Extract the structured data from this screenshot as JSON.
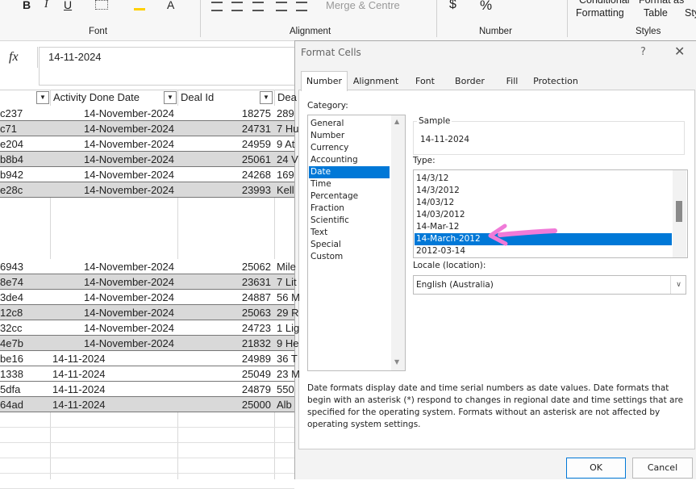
{
  "ribbon": {
    "bold": "B",
    "italic": "I",
    "underline": "U",
    "font_color": "A",
    "merge": "Merge & Centre",
    "currency": "$",
    "percent": "%",
    "conditional": [
      "Conditional",
      "Formatting"
    ],
    "format_table": [
      "Format as",
      "Table"
    ],
    "styles_cut": "Sty",
    "groups": [
      "Font",
      "Alignment",
      "Number",
      "Styles"
    ]
  },
  "formula_bar": {
    "fx": "fx",
    "value": "14-11-2024"
  },
  "sheet": {
    "headers": [
      "Activity Done Date",
      "Deal Id",
      "Dea"
    ],
    "rows": [
      [
        "c237",
        "14-November-2024",
        "18275",
        "289"
      ],
      [
        "c71",
        "14-November-2024",
        "24731",
        "7 Hu"
      ],
      [
        "e204",
        "14-November-2024",
        "24959",
        "9 At"
      ],
      [
        "b8b4",
        "14-November-2024",
        "25061",
        "24 V"
      ],
      [
        "b942",
        "14-November-2024",
        "24268",
        "169"
      ],
      [
        "e28c",
        "14-November-2024",
        "23993",
        "Kell"
      ],
      [
        "6943",
        "14-November-2024",
        "25062",
        "Mile"
      ],
      [
        "8e74",
        "14-November-2024",
        "23631",
        "7 Lit"
      ],
      [
        "3de4",
        "14-November-2024",
        "24887",
        "56 M"
      ],
      [
        "12c8",
        "14-November-2024",
        "25063",
        "29 R"
      ],
      [
        "32cc",
        "14-November-2024",
        "24723",
        "1 Lig"
      ],
      [
        "4e7b",
        "14-November-2024",
        "21832",
        "9 He"
      ],
      [
        "be16",
        "14-11-2024",
        "24989",
        "36 T"
      ],
      [
        "1338",
        "14-11-2024",
        "25049",
        "23 M"
      ],
      [
        "5dfa",
        "14-11-2024",
        "24879",
        "550"
      ],
      [
        "64ad",
        "14-11-2024",
        "25000",
        "Alb"
      ]
    ]
  },
  "dialog": {
    "title": "Format Cells",
    "help": "?",
    "tabs": [
      "Number",
      "Alignment",
      "Font",
      "Border",
      "Fill",
      "Protection"
    ],
    "category_label": "Category:",
    "categories": [
      "General",
      "Number",
      "Currency",
      "Accounting",
      "Date",
      "Time",
      "Percentage",
      "Fraction",
      "Scientific",
      "Text",
      "Special",
      "Custom"
    ],
    "sample_label": "Sample",
    "sample": "14-11-2024",
    "type_label": "Type:",
    "types": [
      "14/3/12",
      "14/3/2012",
      "14/03/12",
      "14/03/2012",
      "14-Mar-12",
      "14-March-2012",
      "2012-03-14"
    ],
    "locale_label": "Locale (location):",
    "locale": "English (Australia)",
    "description": "Date formats display date and time serial numbers as date values.  Date formats that begin with an asterisk (*) respond to changes in regional date and time settings that are specified for the operating system. Formats without an asterisk are not affected by operating system settings.",
    "ok": "OK",
    "cancel": "Cancel"
  }
}
